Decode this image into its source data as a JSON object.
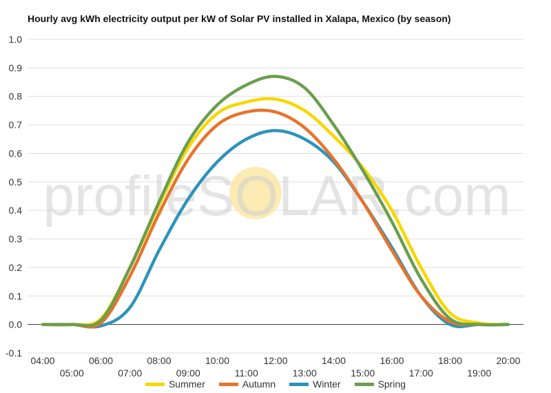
{
  "chart_data": {
    "type": "line",
    "title": "Hourly avg kWh electricity output per kW of Solar PV installed in Xalapa, Mexico (by season)",
    "xlabel": "",
    "ylabel": "",
    "x": [
      "04:00",
      "05:00",
      "06:00",
      "07:00",
      "08:00",
      "09:00",
      "10:00",
      "11:00",
      "12:00",
      "13:00",
      "14:00",
      "15:00",
      "16:00",
      "17:00",
      "18:00",
      "19:00",
      "20:00"
    ],
    "ylim": [
      -0.1,
      1.0
    ],
    "yticks": [
      "1.0",
      "0.9",
      "0.8",
      "0.7",
      "0.6",
      "0.5",
      "0.4",
      "0.3",
      "0.2",
      "0.1",
      "0.0",
      "-0.1"
    ],
    "grid": true,
    "legend_position": "bottom",
    "series": [
      {
        "name": "Summer",
        "color": "#F7D700",
        "values": [
          0.0,
          0.0,
          0.02,
          0.2,
          0.42,
          0.62,
          0.74,
          0.78,
          0.79,
          0.75,
          0.66,
          0.55,
          0.4,
          0.2,
          0.04,
          0.005,
          0.0
        ]
      },
      {
        "name": "Autumn",
        "color": "#E8732A",
        "values": [
          0.0,
          0.0,
          0.005,
          0.17,
          0.39,
          0.58,
          0.7,
          0.745,
          0.745,
          0.69,
          0.58,
          0.43,
          0.26,
          0.1,
          0.01,
          0.0,
          0.0
        ]
      },
      {
        "name": "Winter",
        "color": "#2E93BA",
        "values": [
          0.0,
          0.0,
          -0.005,
          0.06,
          0.26,
          0.44,
          0.57,
          0.65,
          0.68,
          0.65,
          0.57,
          0.43,
          0.27,
          0.1,
          0.0,
          0.0,
          0.0
        ]
      },
      {
        "name": "Spring",
        "color": "#6B9E50",
        "values": [
          0.0,
          0.0,
          0.015,
          0.2,
          0.43,
          0.64,
          0.77,
          0.84,
          0.87,
          0.83,
          0.7,
          0.54,
          0.36,
          0.16,
          0.02,
          0.0,
          0.0
        ]
      }
    ]
  },
  "watermark": {
    "text": "profileSOLAR.com",
    "sun_color": "#FBE7A0"
  }
}
